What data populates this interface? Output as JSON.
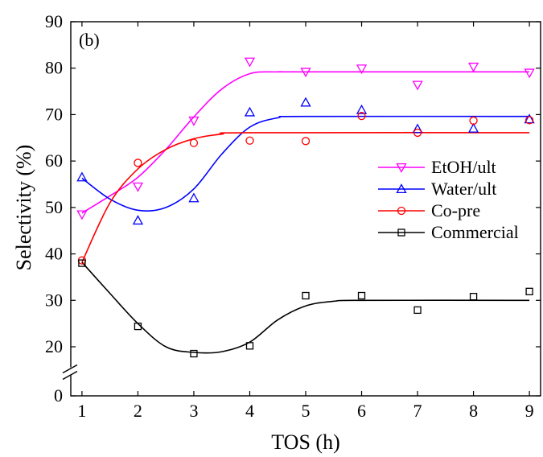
{
  "chart_data": {
    "type": "scatter",
    "title": "",
    "panel_label": "(b)",
    "xlabel": "TOS (h)",
    "ylabel": "Selectivity (%)",
    "xlim": [
      0.8,
      9.2
    ],
    "ylim": [
      0,
      90
    ],
    "axis_break": [
      0,
      20
    ],
    "x_ticks": [
      1,
      2,
      3,
      4,
      5,
      6,
      7,
      8,
      9
    ],
    "y_ticks": [
      0,
      20,
      30,
      40,
      50,
      60,
      70,
      80,
      90
    ],
    "grid": false,
    "legend_position": "right",
    "series": [
      {
        "name": "EtOH/ult",
        "color": "#ff00ff",
        "marker": "triangle-down",
        "x": [
          1,
          2,
          3,
          4,
          5,
          6,
          7,
          8,
          9
        ],
        "y": [
          48.5,
          54.5,
          68.7,
          81.4,
          79.2,
          79.9,
          76.4,
          80.3,
          79.0
        ],
        "fit": [
          [
            1,
            48.8
          ],
          [
            1.5,
            52.5
          ],
          [
            2,
            56.5
          ],
          [
            2.5,
            62.5
          ],
          [
            3,
            69.5
          ],
          [
            3.5,
            75.5
          ],
          [
            4,
            78.8
          ],
          [
            4.5,
            79.2
          ],
          [
            5,
            79.2
          ],
          [
            9,
            79.2
          ]
        ]
      },
      {
        "name": "Water/ult",
        "color": "#0000ff",
        "marker": "triangle-up",
        "x": [
          1,
          2,
          3,
          4,
          5,
          6,
          7,
          8,
          9
        ],
        "y": [
          56.5,
          47.2,
          52.0,
          70.5,
          72.6,
          71.0,
          66.9,
          67.0,
          69.0
        ],
        "fit": [
          [
            1,
            56.3
          ],
          [
            1.5,
            51.8
          ],
          [
            2,
            49.4
          ],
          [
            2.5,
            50.0
          ],
          [
            3,
            54.0
          ],
          [
            3.5,
            61.5
          ],
          [
            4,
            67.3
          ],
          [
            4.5,
            69.3
          ],
          [
            5,
            69.6
          ],
          [
            9,
            69.6
          ]
        ]
      },
      {
        "name": "Co-pre",
        "color": "#ff0000",
        "marker": "circle",
        "x": [
          1,
          2,
          3,
          4,
          5,
          6,
          7,
          8,
          9
        ],
        "y": [
          38.6,
          59.6,
          63.9,
          64.4,
          64.3,
          69.7,
          66.1,
          68.7,
          68.8
        ],
        "fit": [
          [
            1,
            38.2
          ],
          [
            1.5,
            51.0
          ],
          [
            2,
            58.3
          ],
          [
            2.5,
            62.5
          ],
          [
            3,
            64.8
          ],
          [
            3.5,
            65.8
          ],
          [
            4,
            66.1
          ],
          [
            9,
            66.1
          ]
        ]
      },
      {
        "name": "Commercial",
        "color": "#000000",
        "marker": "square",
        "x": [
          1,
          2,
          3,
          4,
          5,
          6,
          7,
          8,
          9
        ],
        "y": [
          38.0,
          24.4,
          17.2,
          20.2,
          31.0,
          31.0,
          27.9,
          30.8,
          31.9
        ],
        "fit": [
          [
            1,
            38.2
          ],
          [
            1.5,
            31.5
          ],
          [
            2,
            25.0
          ],
          [
            2.5,
            20.0
          ],
          [
            3,
            17.7
          ],
          [
            3.5,
            18.0
          ],
          [
            4,
            21.0
          ],
          [
            4.5,
            25.8
          ],
          [
            5,
            28.8
          ],
          [
            5.5,
            29.8
          ],
          [
            6,
            30.0
          ],
          [
            9,
            30.0
          ]
        ]
      }
    ]
  }
}
